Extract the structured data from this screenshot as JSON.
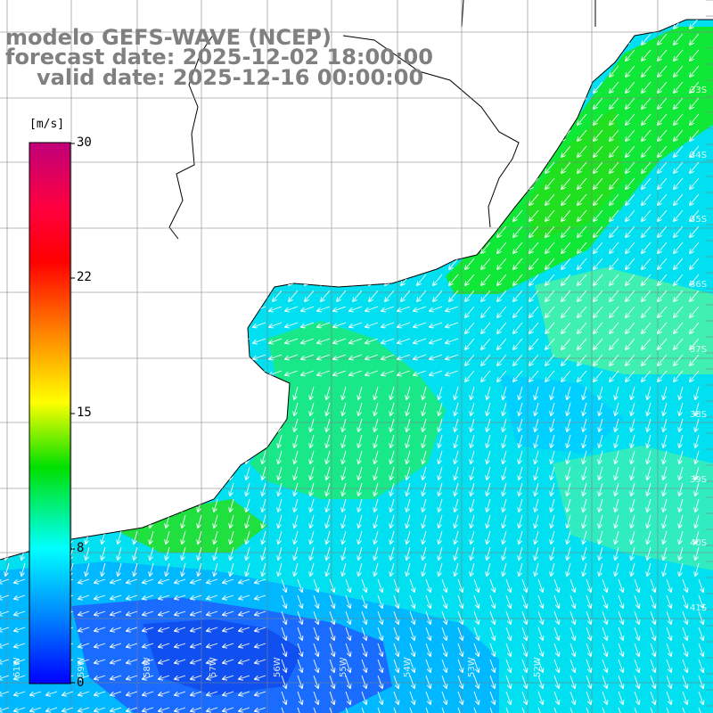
{
  "title": {
    "line1": "modelo GEFS-WAVE (NCEP)",
    "line2": "forecast date: 2025-12-02 18:00:00",
    "line3": "valid date: 2025-12-16 00:00:00"
  },
  "colorbar": {
    "unit": "[m/s]",
    "ticks": [
      "30",
      "22",
      "15",
      "8",
      "0"
    ],
    "colors": [
      "#c0007a",
      "#ff0000",
      "#ff8c00",
      "#ffff00",
      "#00e000",
      "#00ffff",
      "#0080ff",
      "#0000ff"
    ]
  },
  "lat_labels": [
    "33S",
    "34S",
    "35S",
    "36S",
    "37S",
    "38S",
    "39S",
    "40S",
    "41S"
  ],
  "lon_labels": [
    "61W",
    "59W",
    "58W",
    "57W",
    "56W",
    "55W",
    "54W",
    "53W",
    "52W"
  ],
  "field": {
    "description_colors": {
      "blue": "#2060ff",
      "lightblue": "#00c8ff",
      "cyan": "#00e8ff",
      "green": "#00e860",
      "brightgreen": "#20e020"
    }
  }
}
